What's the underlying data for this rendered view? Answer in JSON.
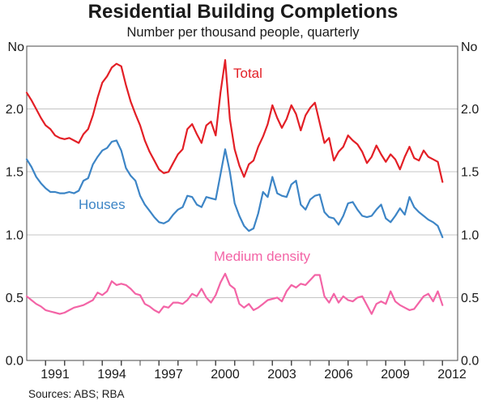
{
  "header": {
    "title": "Residential Building Completions",
    "subtitle": "Number per thousand people, quarterly"
  },
  "axes": {
    "unit_left": "No",
    "unit_right": "No"
  },
  "footer": {
    "sources": "Sources: ABS; RBA"
  },
  "chart_data": {
    "type": "line",
    "title": "Residential Building Completions",
    "subtitle": "Number per thousand people, quarterly",
    "ylabel": "No",
    "xlim": [
      1990,
      2012.8
    ],
    "ylim": [
      0,
      2.5
    ],
    "grid": true,
    "legend_position": "inline-annotations",
    "y_gridlines": [
      0.5,
      1.0,
      1.5,
      2.0
    ],
    "y_tick_values": [
      0,
      0.5,
      1.0,
      1.5,
      2.0
    ],
    "y_tick_labels": [
      "0.0",
      "0.5",
      "1.0",
      "1.5",
      "2.0"
    ],
    "x_ticks": [
      1991,
      1992,
      1993,
      1994,
      1995,
      1996,
      1997,
      1998,
      1999,
      2000,
      2001,
      2002,
      2003,
      2004,
      2005,
      2006,
      2007,
      2008,
      2009,
      2010,
      2011,
      2012
    ],
    "x_tick_labels": [
      1991,
      1994,
      1997,
      2000,
      2003,
      2006,
      2009,
      2012
    ],
    "x_start": 1990.0,
    "x_step": 0.25,
    "series": [
      {
        "id": "total",
        "name": "Total",
        "color": "#e31f26",
        "values": [
          2.13,
          2.07,
          2.0,
          1.93,
          1.87,
          1.84,
          1.79,
          1.77,
          1.76,
          1.77,
          1.75,
          1.73,
          1.8,
          1.84,
          1.95,
          2.09,
          2.21,
          2.26,
          2.33,
          2.36,
          2.34,
          2.19,
          2.06,
          1.96,
          1.87,
          1.75,
          1.66,
          1.59,
          1.52,
          1.49,
          1.5,
          1.57,
          1.64,
          1.68,
          1.84,
          1.88,
          1.8,
          1.73,
          1.87,
          1.9,
          1.79,
          2.13,
          2.39,
          1.92,
          1.68,
          1.55,
          1.46,
          1.56,
          1.59,
          1.7,
          1.78,
          1.88,
          2.03,
          1.93,
          1.85,
          1.92,
          2.03,
          1.96,
          1.83,
          1.95,
          2.01,
          2.05,
          1.89,
          1.73,
          1.77,
          1.59,
          1.66,
          1.7,
          1.79,
          1.75,
          1.72,
          1.66,
          1.57,
          1.62,
          1.71,
          1.64,
          1.58,
          1.64,
          1.6,
          1.52,
          1.62,
          1.7,
          1.61,
          1.59,
          1.67,
          1.62,
          1.6,
          1.58,
          1.42
        ]
      },
      {
        "id": "houses",
        "name": "Houses",
        "color": "#3d85c6",
        "values": [
          1.6,
          1.54,
          1.46,
          1.41,
          1.37,
          1.34,
          1.34,
          1.33,
          1.33,
          1.34,
          1.33,
          1.35,
          1.43,
          1.45,
          1.56,
          1.62,
          1.67,
          1.69,
          1.74,
          1.75,
          1.67,
          1.53,
          1.47,
          1.43,
          1.31,
          1.24,
          1.19,
          1.14,
          1.1,
          1.09,
          1.11,
          1.16,
          1.2,
          1.22,
          1.31,
          1.3,
          1.24,
          1.22,
          1.3,
          1.29,
          1.28,
          1.48,
          1.68,
          1.5,
          1.25,
          1.15,
          1.07,
          1.03,
          1.05,
          1.17,
          1.34,
          1.3,
          1.46,
          1.33,
          1.31,
          1.3,
          1.4,
          1.43,
          1.24,
          1.2,
          1.28,
          1.31,
          1.32,
          1.18,
          1.14,
          1.13,
          1.08,
          1.15,
          1.25,
          1.26,
          1.2,
          1.15,
          1.14,
          1.15,
          1.2,
          1.24,
          1.13,
          1.1,
          1.15,
          1.21,
          1.16,
          1.3,
          1.22,
          1.18,
          1.15,
          1.12,
          1.1,
          1.07,
          0.98
        ]
      },
      {
        "id": "medium-density",
        "name": "Medium density",
        "color": "#f364a6",
        "values": [
          0.51,
          0.48,
          0.45,
          0.43,
          0.4,
          0.39,
          0.38,
          0.37,
          0.38,
          0.4,
          0.42,
          0.43,
          0.44,
          0.46,
          0.48,
          0.54,
          0.52,
          0.55,
          0.63,
          0.6,
          0.61,
          0.6,
          0.57,
          0.53,
          0.52,
          0.45,
          0.43,
          0.4,
          0.38,
          0.43,
          0.42,
          0.46,
          0.46,
          0.45,
          0.48,
          0.53,
          0.51,
          0.57,
          0.5,
          0.46,
          0.52,
          0.62,
          0.69,
          0.6,
          0.57,
          0.45,
          0.42,
          0.45,
          0.4,
          0.42,
          0.45,
          0.48,
          0.49,
          0.5,
          0.47,
          0.55,
          0.6,
          0.58,
          0.61,
          0.6,
          0.64,
          0.68,
          0.68,
          0.51,
          0.46,
          0.53,
          0.46,
          0.51,
          0.48,
          0.47,
          0.5,
          0.51,
          0.44,
          0.37,
          0.45,
          0.47,
          0.45,
          0.55,
          0.47,
          0.44,
          0.42,
          0.4,
          0.41,
          0.46,
          0.51,
          0.53,
          0.47,
          0.55,
          0.44
        ]
      }
    ]
  }
}
